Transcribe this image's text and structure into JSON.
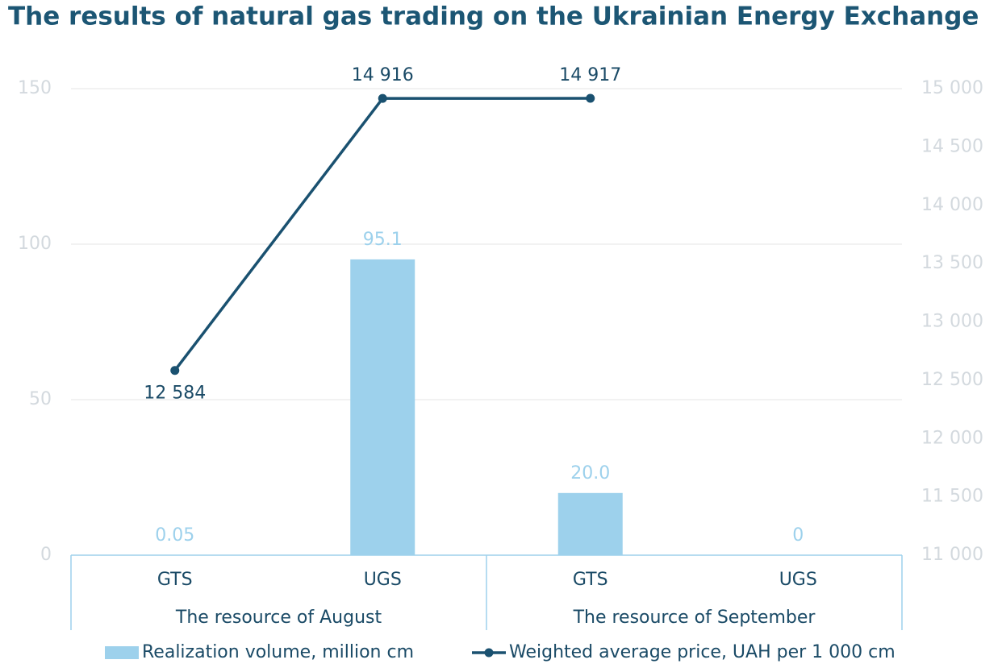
{
  "chart_data": {
    "type": "bar",
    "title": "The results of natural gas trading on the Ukrainian Energy Exchange",
    "categories": [
      "GTS",
      "UGS",
      "GTS",
      "UGS"
    ],
    "groups": [
      {
        "name": "The resource of August",
        "span": 2
      },
      {
        "name": "The resource of September",
        "span": 2
      }
    ],
    "series": [
      {
        "name": "Realization volume, million cm",
        "type": "bar",
        "color": "#9dd1ec",
        "values": [
          0.05,
          95.1,
          20.0,
          0
        ],
        "value_labels": [
          "0.05",
          "95.1",
          "20.0",
          "0"
        ]
      },
      {
        "name": "Weighted average price, UAH per 1 000 cm",
        "type": "line",
        "axis": "y2",
        "color": "#1a5170",
        "values": [
          12584,
          14916,
          14917,
          null
        ],
        "value_labels": [
          "12 584",
          "14 916",
          "14 917",
          null
        ]
      }
    ],
    "ylim": [
      0,
      150
    ],
    "yticks": [
      0,
      50,
      100,
      150
    ],
    "y2lim": [
      11000,
      15000
    ],
    "y2ticks": [
      {
        "value": 11000,
        "label": "11 000"
      },
      {
        "value": 11500,
        "label": "11 500"
      },
      {
        "value": 12000,
        "label": "12 000"
      },
      {
        "value": 12500,
        "label": "12 500"
      },
      {
        "value": 13000,
        "label": "13 000"
      },
      {
        "value": 13500,
        "label": "13 500"
      },
      {
        "value": 14000,
        "label": "14 000"
      },
      {
        "value": 14500,
        "label": "14 500"
      },
      {
        "value": 15000,
        "label": "15 000"
      }
    ],
    "grid": true,
    "legend": "bottom"
  }
}
